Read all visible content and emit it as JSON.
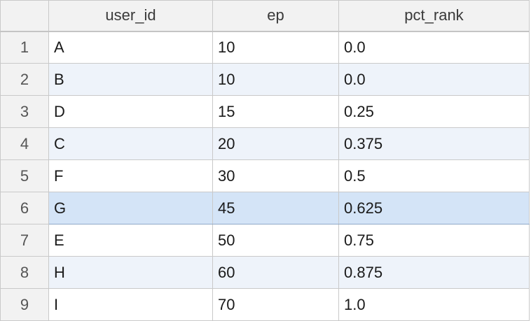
{
  "table": {
    "columns": [
      "user_id",
      "ep",
      "pct_rank"
    ],
    "rows": [
      {
        "num": "1",
        "user_id": "A",
        "ep": "10",
        "pct_rank": "0.0"
      },
      {
        "num": "2",
        "user_id": "B",
        "ep": "10",
        "pct_rank": "0.0"
      },
      {
        "num": "3",
        "user_id": "D",
        "ep": "15",
        "pct_rank": "0.25"
      },
      {
        "num": "4",
        "user_id": "C",
        "ep": "20",
        "pct_rank": "0.375"
      },
      {
        "num": "5",
        "user_id": "F",
        "ep": "30",
        "pct_rank": "0.5"
      },
      {
        "num": "6",
        "user_id": "G",
        "ep": "45",
        "pct_rank": "0.625"
      },
      {
        "num": "7",
        "user_id": "E",
        "ep": "50",
        "pct_rank": "0.75"
      },
      {
        "num": "8",
        "user_id": "H",
        "ep": "60",
        "pct_rank": "0.875"
      },
      {
        "num": "9",
        "user_id": "I",
        "ep": "70",
        "pct_rank": "1.0"
      }
    ],
    "selected_row": "6"
  },
  "colors": {
    "header_bg": "#f2f2f2",
    "alt_row_bg": "#eef3fa",
    "selected_row_bg": "#d4e4f7",
    "grid_line": "#c9c9c9"
  }
}
